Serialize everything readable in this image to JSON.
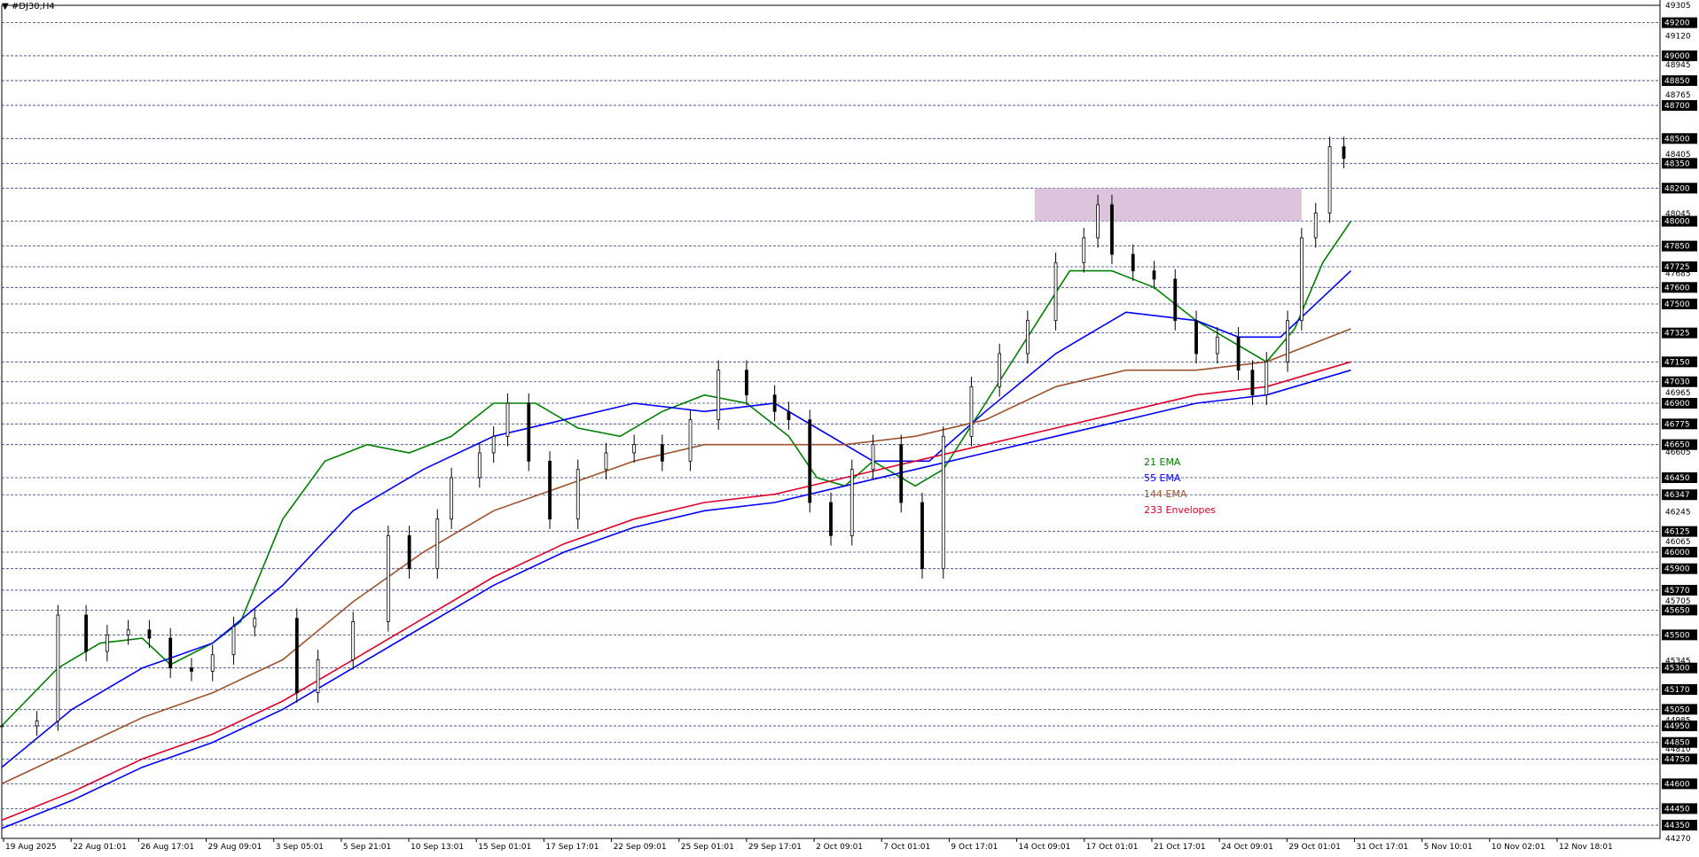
{
  "window": {
    "title": "#DJ30,H4",
    "menu_icon": "triangle-down-icon"
  },
  "legend": [
    {
      "text": "21 EMA",
      "color": "#008000"
    },
    {
      "text": "55 EMA",
      "color": "#0000ff"
    },
    {
      "text": "144 EMA",
      "color": "#a0522d"
    },
    {
      "text": "233 Envelopes",
      "color": "#e0002a"
    }
  ],
  "price_ticks": [
    "49305",
    "49120",
    "48945",
    "48765",
    "48405",
    "48045",
    "47685",
    "47325",
    "46965",
    "46605",
    "46245",
    "46065",
    "45705",
    "45345",
    "44985",
    "44810",
    "44270"
  ],
  "price_boxes": [
    "49200",
    "49000",
    "48850",
    "48700",
    "48500",
    "48350",
    "48200",
    "48000",
    "47850",
    "47725",
    "47600",
    "47500",
    "47325",
    "47150",
    "47030",
    "46900",
    "46775",
    "46650",
    "46450",
    "46347",
    "46125",
    "46000",
    "45900",
    "45770",
    "45650",
    "45500",
    "45300",
    "45170",
    "45050",
    "44950",
    "44850",
    "44750",
    "44600",
    "44450",
    "44350"
  ],
  "time_labels": [
    "19 Aug 2025",
    "22 Aug 01:01",
    "26 Aug 17:01",
    "29 Aug 09:01",
    "3 Sep 05:01",
    "5 Sep 21:01",
    "10 Sep 13:01",
    "15 Sep 01:01",
    "17 Sep 17:01",
    "22 Sep 09:01",
    "25 Sep 01:01",
    "29 Sep 17:01",
    "2 Oct 09:01",
    "7 Oct 01:01",
    "9 Oct 17:01",
    "14 Oct 09:01",
    "17 Oct 01:01",
    "21 Oct 17:01",
    "24 Oct 09:01",
    "29 Oct 01:01",
    "31 Oct 17:01",
    "5 Nov 10:01",
    "10 Nov 02:01",
    "12 Nov 18:01"
  ],
  "chart_data": {
    "type": "candlestick",
    "symbol": "#DJ30",
    "timeframe": "H4",
    "ylim": [
      44270,
      49305
    ],
    "grid": "horizontal dashed lines at price levels",
    "resistance_zone": {
      "from": 48000,
      "to": 48200,
      "color": "#d8bfd8"
    },
    "candles": [
      {
        "x": 0,
        "close": 44950
      },
      {
        "x": 5,
        "close": 44980
      },
      {
        "x": 8,
        "close": 45620
      },
      {
        "x": 12,
        "close": 45400
      },
      {
        "x": 15,
        "close": 45500
      },
      {
        "x": 18,
        "close": 45530
      },
      {
        "x": 21,
        "close": 45480
      },
      {
        "x": 24,
        "close": 45300
      },
      {
        "x": 27,
        "close": 45280
      },
      {
        "x": 30,
        "close": 45380
      },
      {
        "x": 33,
        "close": 45550
      },
      {
        "x": 36,
        "close": 45600
      },
      {
        "x": 42,
        "close": 45150
      },
      {
        "x": 45,
        "close": 45350
      },
      {
        "x": 50,
        "close": 45580
      },
      {
        "x": 55,
        "close": 46100
      },
      {
        "x": 58,
        "close": 45900
      },
      {
        "x": 62,
        "close": 46200
      },
      {
        "x": 64,
        "close": 46450
      },
      {
        "x": 68,
        "close": 46600
      },
      {
        "x": 70,
        "close": 46700
      },
      {
        "x": 72,
        "close": 46900
      },
      {
        "x": 75,
        "close": 46550
      },
      {
        "x": 78,
        "close": 46200
      },
      {
        "x": 82,
        "close": 46500
      },
      {
        "x": 86,
        "close": 46600
      },
      {
        "x": 90,
        "close": 46650
      },
      {
        "x": 94,
        "close": 46550
      },
      {
        "x": 98,
        "close": 46800
      },
      {
        "x": 102,
        "close": 47100
      },
      {
        "x": 106,
        "close": 46950
      },
      {
        "x": 110,
        "close": 46850
      },
      {
        "x": 112,
        "close": 46800
      },
      {
        "x": 115,
        "close": 46300
      },
      {
        "x": 118,
        "close": 46100
      },
      {
        "x": 121,
        "close": 46500
      },
      {
        "x": 124,
        "close": 46650
      },
      {
        "x": 128,
        "close": 46300
      },
      {
        "x": 131,
        "close": 45900
      },
      {
        "x": 134,
        "close": 46700
      },
      {
        "x": 138,
        "close": 47000
      },
      {
        "x": 142,
        "close": 47200
      },
      {
        "x": 146,
        "close": 47400
      },
      {
        "x": 150,
        "close": 47750
      },
      {
        "x": 154,
        "close": 47900
      },
      {
        "x": 156,
        "close": 48100
      },
      {
        "x": 158,
        "close": 47800
      },
      {
        "x": 161,
        "close": 47700
      },
      {
        "x": 164,
        "close": 47650
      },
      {
        "x": 167,
        "close": 47400
      },
      {
        "x": 170,
        "close": 47200
      },
      {
        "x": 173,
        "close": 47300
      },
      {
        "x": 176,
        "close": 47100
      },
      {
        "x": 178,
        "close": 46950
      },
      {
        "x": 180,
        "close": 47150
      },
      {
        "x": 183,
        "close": 47400
      },
      {
        "x": 185,
        "close": 47900
      },
      {
        "x": 187,
        "close": 48050
      },
      {
        "x": 189,
        "close": 48450
      },
      {
        "x": 191,
        "close": 48380
      }
    ],
    "series": [
      {
        "name": "21 EMA",
        "values": [
          [
            0,
            44950
          ],
          [
            8,
            45300
          ],
          [
            14,
            45450
          ],
          [
            20,
            45480
          ],
          [
            24,
            45320
          ],
          [
            30,
            45450
          ],
          [
            34,
            45580
          ],
          [
            40,
            46200
          ],
          [
            46,
            46550
          ],
          [
            52,
            46650
          ],
          [
            58,
            46600
          ],
          [
            64,
            46700
          ],
          [
            70,
            46900
          ],
          [
            76,
            46900
          ],
          [
            82,
            46750
          ],
          [
            88,
            46700
          ],
          [
            94,
            46850
          ],
          [
            100,
            46950
          ],
          [
            106,
            46900
          ],
          [
            112,
            46700
          ],
          [
            116,
            46450
          ],
          [
            120,
            46400
          ],
          [
            124,
            46550
          ],
          [
            130,
            46400
          ],
          [
            134,
            46500
          ],
          [
            140,
            46900
          ],
          [
            146,
            47300
          ],
          [
            152,
            47700
          ],
          [
            158,
            47700
          ],
          [
            164,
            47600
          ],
          [
            170,
            47400
          ],
          [
            176,
            47250
          ],
          [
            180,
            47150
          ],
          [
            184,
            47350
          ],
          [
            188,
            47750
          ],
          [
            192,
            48000
          ]
        ]
      },
      {
        "name": "55 EMA",
        "values": [
          [
            0,
            44700
          ],
          [
            10,
            45050
          ],
          [
            20,
            45300
          ],
          [
            30,
            45450
          ],
          [
            40,
            45800
          ],
          [
            50,
            46250
          ],
          [
            60,
            46500
          ],
          [
            70,
            46700
          ],
          [
            80,
            46800
          ],
          [
            90,
            46900
          ],
          [
            100,
            46850
          ],
          [
            110,
            46900
          ],
          [
            116,
            46750
          ],
          [
            124,
            46550
          ],
          [
            132,
            46550
          ],
          [
            140,
            46850
          ],
          [
            150,
            47200
          ],
          [
            160,
            47450
          ],
          [
            170,
            47400
          ],
          [
            176,
            47300
          ],
          [
            182,
            47300
          ],
          [
            192,
            47700
          ]
        ]
      },
      {
        "name": "144 EMA",
        "values": [
          [
            0,
            44600
          ],
          [
            10,
            44800
          ],
          [
            20,
            45000
          ],
          [
            30,
            45150
          ],
          [
            40,
            45350
          ],
          [
            50,
            45700
          ],
          [
            60,
            46000
          ],
          [
            70,
            46250
          ],
          [
            80,
            46400
          ],
          [
            90,
            46550
          ],
          [
            100,
            46650
          ],
          [
            110,
            46650
          ],
          [
            120,
            46650
          ],
          [
            130,
            46700
          ],
          [
            140,
            46800
          ],
          [
            150,
            47000
          ],
          [
            160,
            47100
          ],
          [
            170,
            47100
          ],
          [
            180,
            47150
          ],
          [
            192,
            47350
          ]
        ]
      },
      {
        "name": "233 Envelopes upper",
        "values": [
          [
            0,
            44380
          ],
          [
            10,
            44550
          ],
          [
            20,
            44750
          ],
          [
            30,
            44900
          ],
          [
            40,
            45100
          ],
          [
            50,
            45350
          ],
          [
            60,
            45600
          ],
          [
            70,
            45850
          ],
          [
            80,
            46050
          ],
          [
            90,
            46200
          ],
          [
            100,
            46300
          ],
          [
            110,
            46350
          ],
          [
            120,
            46450
          ],
          [
            130,
            46550
          ],
          [
            140,
            46650
          ],
          [
            150,
            46750
          ],
          [
            160,
            46850
          ],
          [
            170,
            46950
          ],
          [
            180,
            47000
          ],
          [
            192,
            47150
          ]
        ]
      },
      {
        "name": "233 Envelopes lower",
        "values": [
          [
            0,
            44330
          ],
          [
            10,
            44500
          ],
          [
            20,
            44700
          ],
          [
            30,
            44850
          ],
          [
            40,
            45050
          ],
          [
            50,
            45300
          ],
          [
            60,
            45550
          ],
          [
            70,
            45800
          ],
          [
            80,
            46000
          ],
          [
            90,
            46150
          ],
          [
            100,
            46250
          ],
          [
            110,
            46300
          ],
          [
            120,
            46400
          ],
          [
            130,
            46500
          ],
          [
            140,
            46600
          ],
          [
            150,
            46700
          ],
          [
            160,
            46800
          ],
          [
            170,
            46900
          ],
          [
            180,
            46950
          ],
          [
            192,
            47100
          ]
        ]
      }
    ]
  }
}
